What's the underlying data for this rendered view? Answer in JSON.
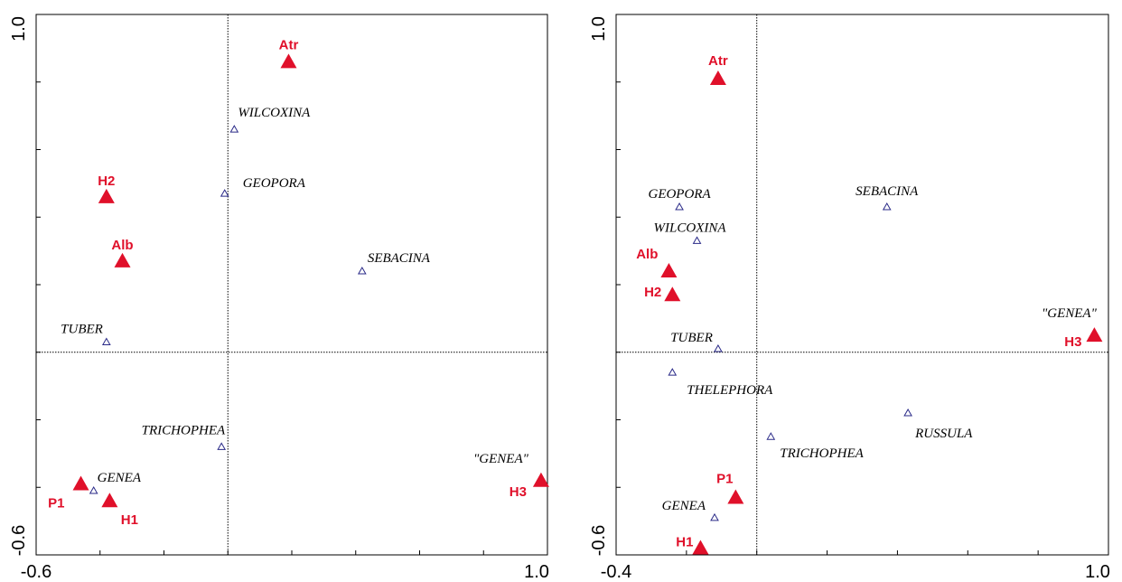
{
  "chart_data": [
    {
      "type": "scatter",
      "xlim": [
        -0.6,
        1.0
      ],
      "ylim": [
        -0.6,
        1.0
      ],
      "x_ticks": [
        -0.6,
        -0.4,
        -0.2,
        0.0,
        0.2,
        0.4,
        0.6,
        0.8,
        1.0
      ],
      "y_ticks": [
        -0.6,
        -0.4,
        -0.2,
        0.0,
        0.2,
        0.4,
        0.6,
        0.8,
        1.0
      ],
      "x_tick_labels": [
        "-0.6",
        "1.0"
      ],
      "y_tick_labels": [
        "-0.6",
        "1.0"
      ],
      "sites": [
        {
          "label": "Atr",
          "x": 0.19,
          "y": 0.86,
          "color": "#e0102a"
        },
        {
          "label": "H2",
          "x": -0.38,
          "y": 0.46,
          "color": "#e0102a"
        },
        {
          "label": "Alb",
          "x": -0.33,
          "y": 0.27,
          "color": "#e0102a"
        },
        {
          "label": "P1",
          "x": -0.46,
          "y": -0.39,
          "color": "#e0102a"
        },
        {
          "label": "H1",
          "x": -0.37,
          "y": -0.44,
          "color": "#e0102a"
        },
        {
          "label": "H3",
          "x": 0.98,
          "y": -0.38,
          "color": "#e0102a"
        }
      ],
      "species": [
        {
          "label": "WILCOXINA",
          "x": 0.02,
          "y": 0.66
        },
        {
          "label": "GEOPORA",
          "x": -0.01,
          "y": 0.47
        },
        {
          "label": "SEBACINA",
          "x": 0.42,
          "y": 0.24
        },
        {
          "label": "TUBER",
          "x": -0.38,
          "y": 0.03
        },
        {
          "label": "TRICHOPHEA",
          "x": -0.02,
          "y": -0.28
        },
        {
          "label": "GENEA",
          "x": -0.42,
          "y": -0.41
        },
        {
          "label": "\"GENEA\"",
          "x": 0.98,
          "y": -0.38
        }
      ]
    },
    {
      "type": "scatter",
      "xlim": [
        -0.4,
        1.0
      ],
      "ylim": [
        -0.6,
        1.0
      ],
      "x_ticks": [
        -0.4,
        -0.2,
        0.0,
        0.2,
        0.4,
        0.6,
        0.8,
        1.0
      ],
      "y_ticks": [
        -0.6,
        -0.4,
        -0.2,
        0.0,
        0.2,
        0.4,
        0.6,
        0.8,
        1.0
      ],
      "x_tick_labels": [
        "-0.4",
        "1.0"
      ],
      "y_tick_labels": [
        "-0.6",
        "1.0"
      ],
      "sites": [
        {
          "label": "Atr",
          "x": -0.11,
          "y": 0.81,
          "color": "#e0102a"
        },
        {
          "label": "Alb",
          "x": -0.25,
          "y": 0.24,
          "color": "#e0102a"
        },
        {
          "label": "H2",
          "x": -0.24,
          "y": 0.17,
          "color": "#e0102a"
        },
        {
          "label": "H3",
          "x": 0.96,
          "y": 0.05,
          "color": "#e0102a"
        },
        {
          "label": "P1",
          "x": -0.06,
          "y": -0.43,
          "color": "#e0102a"
        },
        {
          "label": "H1",
          "x": -0.16,
          "y": -0.58,
          "color": "#e0102a"
        }
      ],
      "species": [
        {
          "label": "GEOPORA",
          "x": -0.22,
          "y": 0.43
        },
        {
          "label": "SEBACINA",
          "x": 0.37,
          "y": 0.43
        },
        {
          "label": "WILCOXINA",
          "x": -0.17,
          "y": 0.33
        },
        {
          "label": "TUBER",
          "x": -0.11,
          "y": 0.01
        },
        {
          "label": "THELEPHORA",
          "x": -0.24,
          "y": -0.06
        },
        {
          "label": "RUSSULA",
          "x": 0.43,
          "y": -0.18
        },
        {
          "label": "TRICHOPHEA",
          "x": 0.04,
          "y": -0.25
        },
        {
          "label": "GENEA",
          "x": -0.12,
          "y": -0.49
        },
        {
          "label": "\"GENEA\"",
          "x": 0.96,
          "y": 0.05
        }
      ]
    }
  ]
}
